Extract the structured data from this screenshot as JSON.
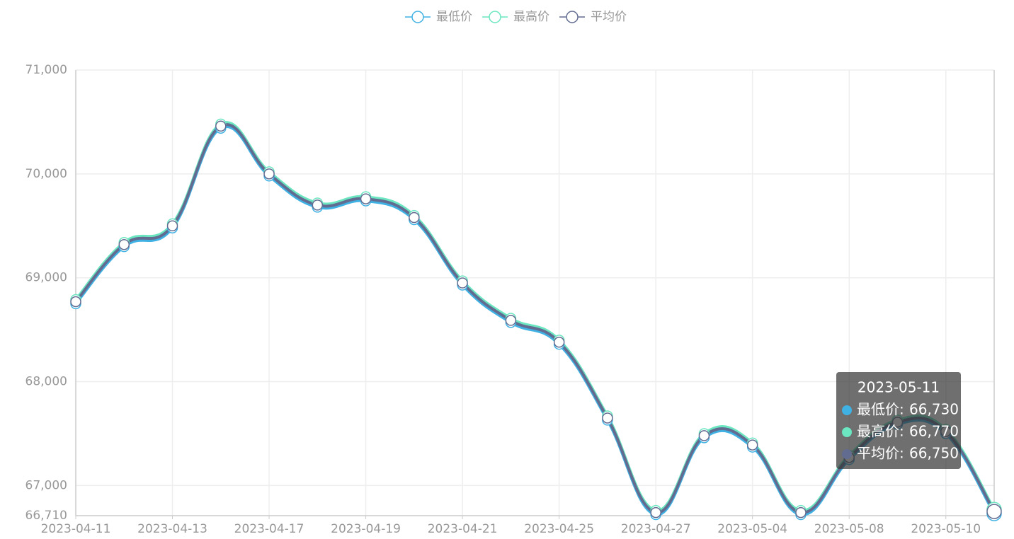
{
  "chart_data": {
    "type": "line",
    "categories": [
      "2023-04-11",
      null,
      "2023-04-13",
      null,
      "2023-04-17",
      null,
      "2023-04-19",
      null,
      "2023-04-21",
      null,
      "2023-04-25",
      null,
      "2023-04-27",
      null,
      "2023-05-04",
      null,
      "2023-05-08",
      null,
      "2023-05-10",
      "2023-05-11"
    ],
    "series": [
      {
        "name": "最低价",
        "color": "#3fb1e3",
        "values": [
          68750,
          69300,
          69480,
          70440,
          69980,
          69680,
          69740,
          69560,
          68930,
          68570,
          68360,
          67630,
          66720,
          67460,
          67370,
          66720,
          67250,
          67590,
          67500,
          66730
        ]
      },
      {
        "name": "最高价",
        "color": "#6be6c1",
        "values": [
          68790,
          69340,
          69520,
          70480,
          70020,
          69720,
          69780,
          69600,
          68970,
          68610,
          68400,
          67670,
          66760,
          67500,
          67410,
          66760,
          67290,
          67630,
          67540,
          66770
        ]
      },
      {
        "name": "平均价",
        "color": "#626c91",
        "values": [
          68770,
          69320,
          69500,
          70460,
          70000,
          69700,
          69760,
          69580,
          68950,
          68590,
          68380,
          67650,
          66740,
          67480,
          67390,
          66740,
          67270,
          67610,
          67520,
          66750
        ]
      }
    ],
    "tooltip_labels": [
      "66,730",
      "66,770",
      "66,750"
    ],
    "ylim": [
      66710,
      71000
    ],
    "yticks": [
      {
        "value": 66710,
        "label": "66,710"
      },
      {
        "value": 67000,
        "label": "67,000"
      },
      {
        "value": 68000,
        "label": "68,000"
      },
      {
        "value": 69000,
        "label": "69,000"
      },
      {
        "value": 70000,
        "label": "70,000"
      },
      {
        "value": 71000,
        "label": "71,000"
      }
    ],
    "grid": true,
    "smooth": true
  }
}
